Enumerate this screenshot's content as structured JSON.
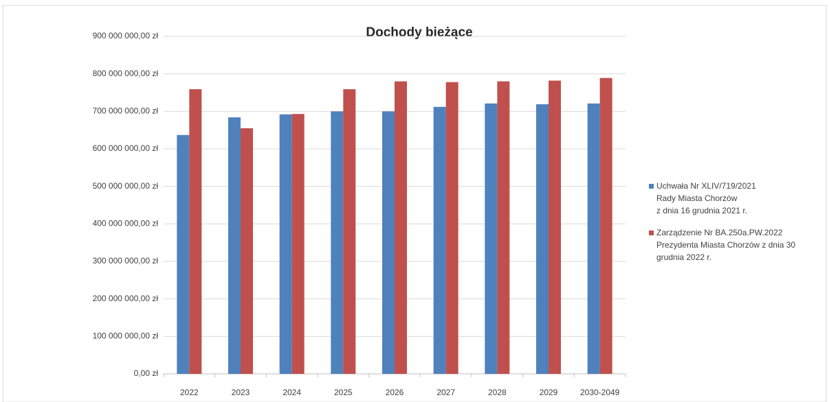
{
  "chart_data": {
    "type": "bar",
    "title": "Dochody bieżące",
    "categories": [
      "2022",
      "2023",
      "2024",
      "2025",
      "2026",
      "2027",
      "2028",
      "2029",
      "2030-2049"
    ],
    "series": [
      {
        "name": "Uchwała Nr XLIV/719/2021\nRady Miasta Chorzów\nz dnia 16 grudnia 2021 r.",
        "color": "#4f81bd",
        "values": [
          637000000,
          684000000,
          692000000,
          700000000,
          700000000,
          712000000,
          721000000,
          719000000,
          721000000
        ]
      },
      {
        "name": "Zarządzenie Nr BA.250a.PW.2022\nPrezydenta Miasta Chorzów z dnia 30\ngrudnia 2022 r.",
        "color": "#c0504d",
        "values": [
          759000000,
          655000000,
          693000000,
          759000000,
          780000000,
          778000000,
          780000000,
          782000000,
          789000000
        ]
      }
    ],
    "ylim": [
      0,
      900000000
    ],
    "yticks": [
      {
        "value": 0,
        "label": "0,00 zł"
      },
      {
        "value": 100000000,
        "label": "100 000 000,00 zł"
      },
      {
        "value": 200000000,
        "label": "200 000 000,00 zł"
      },
      {
        "value": 300000000,
        "label": "300 000 000,00 zł"
      },
      {
        "value": 400000000,
        "label": "400 000 000,00 zł"
      },
      {
        "value": 500000000,
        "label": "500 000 000,00 zł"
      },
      {
        "value": 600000000,
        "label": "600 000 000,00 zł"
      },
      {
        "value": 700000000,
        "label": "700 000 000,00 zł"
      },
      {
        "value": 800000000,
        "label": "800 000 000,00 zł"
      },
      {
        "value": 900000000,
        "label": "900 000 000,00 zł"
      }
    ],
    "grid": true,
    "legend": "right"
  }
}
